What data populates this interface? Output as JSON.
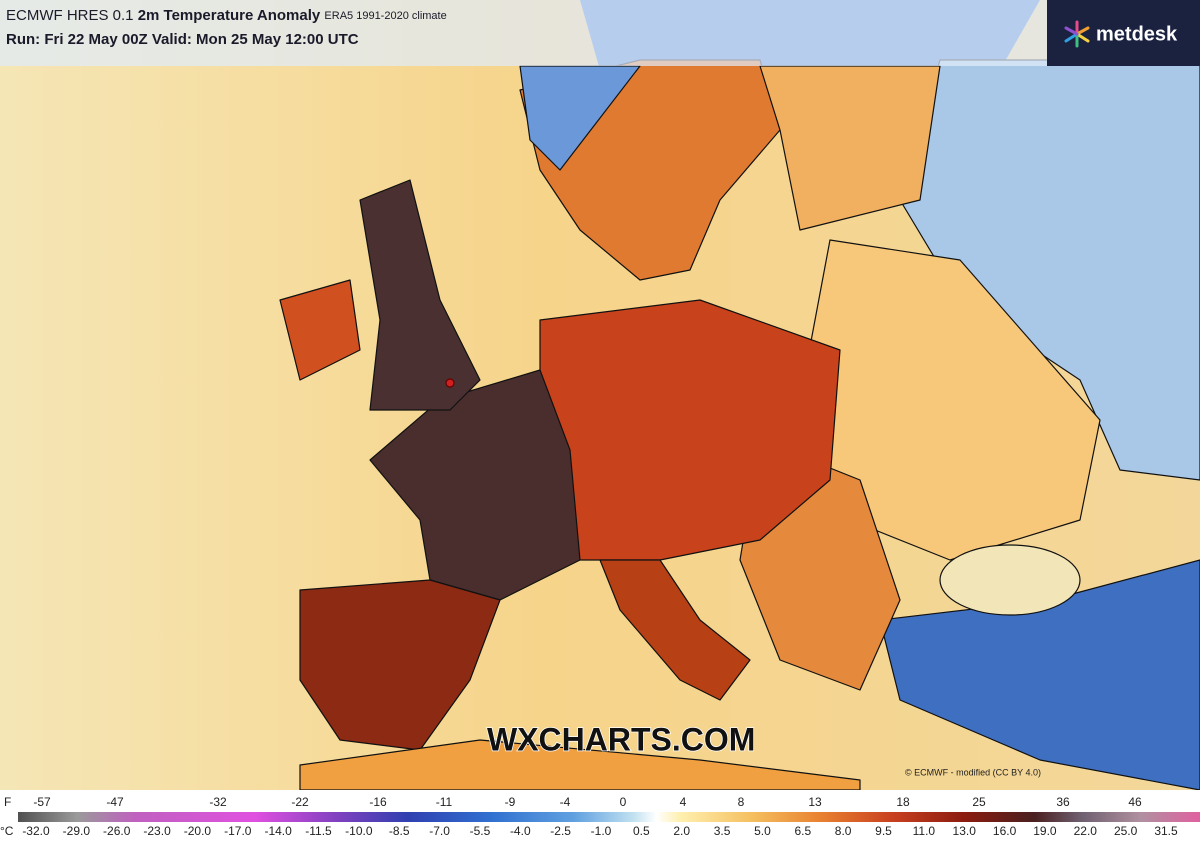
{
  "header": {
    "model": "ECMWF HRES 0.1",
    "title": "2m Temperature Anomaly",
    "climate": "ERA5 1991-2020 climate",
    "run": "Run: Fri 22 May 00Z Valid: Mon 25 May 12:00 UTC"
  },
  "logo": "metdesk",
  "watermark": "WXCHARTS.COM",
  "credit": "© ECMWF - modified (CC BY 4.0)",
  "legend": {
    "f_unit": "F",
    "f_labels": [
      "-57",
      "-47",
      "-32",
      "-22",
      "-16",
      "-11",
      "-9",
      "-4",
      "0",
      "4",
      "8",
      "13",
      "18",
      "25",
      "36",
      "46"
    ],
    "c_unit": "°C",
    "c_labels": [
      "-32.0",
      "-29.0",
      "-26.0",
      "-23.0",
      "-20.0",
      "-17.0",
      "-14.0",
      "-11.5",
      "-10.0",
      "-8.5",
      "-7.0",
      "-5.5",
      "-4.0",
      "-2.5",
      "-1.0",
      "0.5",
      "2.0",
      "3.5",
      "5.0",
      "6.5",
      "8.0",
      "9.5",
      "11.0",
      "13.0",
      "16.0",
      "19.0",
      "22.0",
      "25.0",
      "31.5"
    ]
  }
}
